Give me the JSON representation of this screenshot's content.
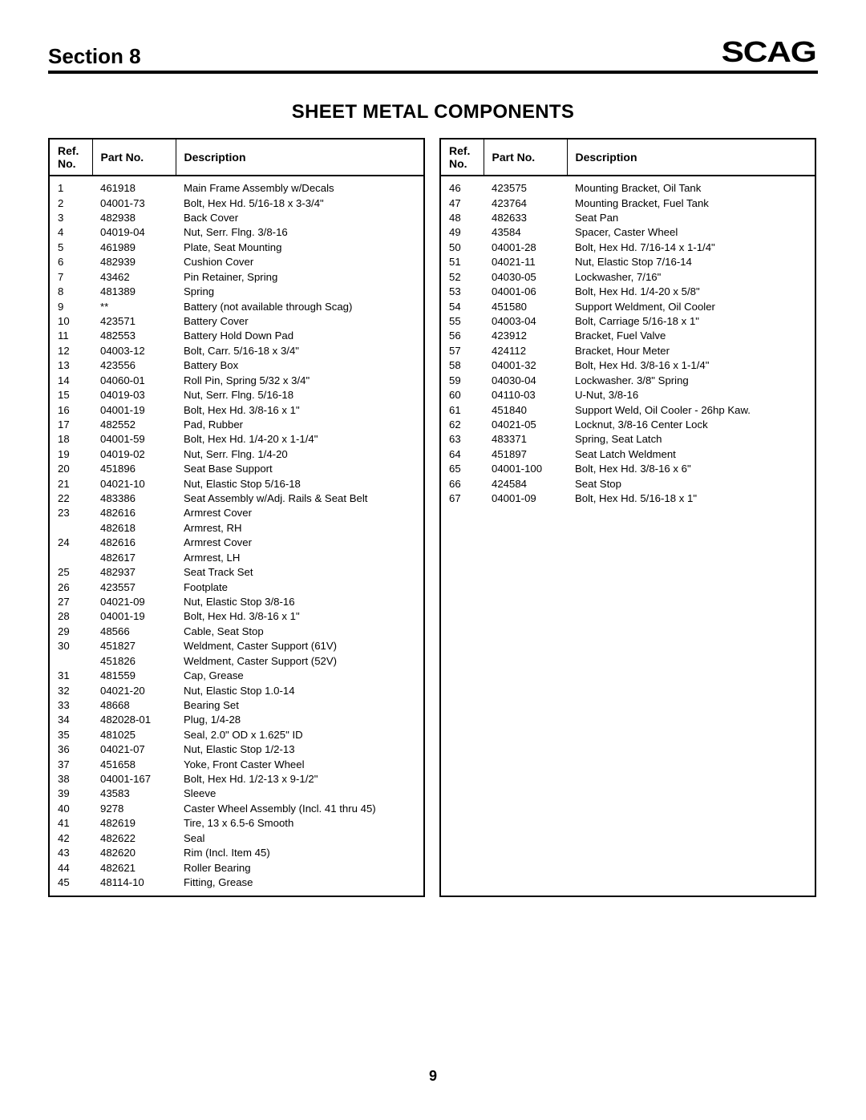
{
  "header": {
    "section_label": "Section 8",
    "brand": "SCAG"
  },
  "title": "SHEET METAL COMPONENTS",
  "columns": {
    "ref_line1": "Ref.",
    "ref_line2": "No.",
    "part_no": "Part No.",
    "description": "Description"
  },
  "page_number": "9",
  "left_rows": [
    {
      "ref": "1",
      "pn": "461918",
      "desc": "Main Frame Assembly w/Decals"
    },
    {
      "ref": "2",
      "pn": "04001-73",
      "desc": "Bolt, Hex Hd. 5/16-18 x 3-3/4\""
    },
    {
      "ref": "3",
      "pn": "482938",
      "desc": "Back Cover"
    },
    {
      "ref": "4",
      "pn": "04019-04",
      "desc": "Nut, Serr. Flng. 3/8-16"
    },
    {
      "ref": "5",
      "pn": "461989",
      "desc": "Plate, Seat Mounting"
    },
    {
      "ref": "6",
      "pn": "482939",
      "desc": "Cushion Cover"
    },
    {
      "ref": "7",
      "pn": "43462",
      "desc": "Pin Retainer, Spring"
    },
    {
      "ref": "8",
      "pn": "481389",
      "desc": "Spring"
    },
    {
      "ref": "9",
      "pn": "**",
      "desc": "Battery (not available through Scag)"
    },
    {
      "ref": "10",
      "pn": "423571",
      "desc": "Battery Cover"
    },
    {
      "ref": "11",
      "pn": "482553",
      "desc": "Battery Hold Down Pad"
    },
    {
      "ref": "12",
      "pn": "04003-12",
      "desc": "Bolt, Carr. 5/16-18 x 3/4\""
    },
    {
      "ref": "13",
      "pn": "423556",
      "desc": "Battery Box"
    },
    {
      "ref": "14",
      "pn": "04060-01",
      "desc": "Roll Pin, Spring 5/32 x 3/4\""
    },
    {
      "ref": "15",
      "pn": "04019-03",
      "desc": "Nut, Serr. Flng. 5/16-18"
    },
    {
      "ref": "16",
      "pn": "04001-19",
      "desc": "Bolt, Hex Hd. 3/8-16 x 1\""
    },
    {
      "ref": "17",
      "pn": "482552",
      "desc": "Pad, Rubber"
    },
    {
      "ref": "18",
      "pn": "04001-59",
      "desc": "Bolt, Hex Hd. 1/4-20 x 1-1/4\""
    },
    {
      "ref": "19",
      "pn": "04019-02",
      "desc": "Nut, Serr. Flng. 1/4-20"
    },
    {
      "ref": "20",
      "pn": "451896",
      "desc": "Seat Base Support"
    },
    {
      "ref": "21",
      "pn": "04021-10",
      "desc": "Nut, Elastic Stop 5/16-18"
    },
    {
      "ref": "22",
      "pn": "483386",
      "desc": "Seat Assembly w/Adj. Rails & Seat Belt"
    },
    {
      "ref": "23",
      "pn": "482616",
      "desc": "Armrest Cover"
    },
    {
      "ref": "",
      "pn": "482618",
      "desc": "Armrest, RH"
    },
    {
      "ref": "24",
      "pn": "482616",
      "desc": "Armrest Cover"
    },
    {
      "ref": "",
      "pn": "482617",
      "desc": "Armrest, LH"
    },
    {
      "ref": "25",
      "pn": "482937",
      "desc": "Seat Track Set"
    },
    {
      "ref": "26",
      "pn": "423557",
      "desc": "Footplate"
    },
    {
      "ref": "27",
      "pn": "04021-09",
      "desc": "Nut, Elastic Stop 3/8-16"
    },
    {
      "ref": "28",
      "pn": "04001-19",
      "desc": "Bolt, Hex Hd. 3/8-16 x 1\""
    },
    {
      "ref": "29",
      "pn": "48566",
      "desc": "Cable, Seat Stop"
    },
    {
      "ref": "30",
      "pn": "451827",
      "desc": "Weldment, Caster Support (61V)"
    },
    {
      "ref": "",
      "pn": "451826",
      "desc": "Weldment, Caster Support (52V)"
    },
    {
      "ref": "31",
      "pn": "481559",
      "desc": "Cap, Grease"
    },
    {
      "ref": "32",
      "pn": "04021-20",
      "desc": "Nut, Elastic Stop 1.0-14"
    },
    {
      "ref": "33",
      "pn": "48668",
      "desc": "Bearing Set"
    },
    {
      "ref": "34",
      "pn": "482028-01",
      "desc": "Plug, 1/4-28"
    },
    {
      "ref": "35",
      "pn": "481025",
      "desc": "Seal, 2.0\" OD x 1.625\" ID"
    },
    {
      "ref": "36",
      "pn": "04021-07",
      "desc": "Nut, Elastic Stop 1/2-13"
    },
    {
      "ref": "37",
      "pn": "451658",
      "desc": "Yoke, Front Caster Wheel"
    },
    {
      "ref": "38",
      "pn": "04001-167",
      "desc": "Bolt, Hex Hd. 1/2-13 x 9-1/2\""
    },
    {
      "ref": "39",
      "pn": "43583",
      "desc": "Sleeve"
    },
    {
      "ref": "40",
      "pn": "9278",
      "desc": "Caster Wheel Assembly (Incl. 41 thru 45)"
    },
    {
      "ref": "41",
      "pn": "482619",
      "desc": "Tire, 13 x 6.5-6 Smooth"
    },
    {
      "ref": "42",
      "pn": "482622",
      "desc": "Seal"
    },
    {
      "ref": "43",
      "pn": "482620",
      "desc": "Rim (Incl. Item 45)"
    },
    {
      "ref": "44",
      "pn": "482621",
      "desc": "Roller Bearing"
    },
    {
      "ref": "45",
      "pn": "48114-10",
      "desc": "Fitting, Grease"
    }
  ],
  "right_rows": [
    {
      "ref": "46",
      "pn": "423575",
      "desc": "Mounting Bracket, Oil Tank"
    },
    {
      "ref": "47",
      "pn": "423764",
      "desc": "Mounting Bracket, Fuel Tank"
    },
    {
      "ref": "48",
      "pn": "482633",
      "desc": "Seat Pan"
    },
    {
      "ref": "49",
      "pn": "43584",
      "desc": "Spacer, Caster Wheel"
    },
    {
      "ref": "50",
      "pn": "04001-28",
      "desc": "Bolt, Hex Hd. 7/16-14 x 1-1/4\""
    },
    {
      "ref": "51",
      "pn": "04021-11",
      "desc": "Nut, Elastic Stop 7/16-14"
    },
    {
      "ref": "52",
      "pn": "04030-05",
      "desc": "Lockwasher, 7/16\""
    },
    {
      "ref": "53",
      "pn": "04001-06",
      "desc": "Bolt, Hex Hd. 1/4-20 x 5/8\""
    },
    {
      "ref": "54",
      "pn": "451580",
      "desc": "Support Weldment, Oil Cooler"
    },
    {
      "ref": "55",
      "pn": "04003-04",
      "desc": "Bolt, Carriage 5/16-18 x 1\""
    },
    {
      "ref": "56",
      "pn": "423912",
      "desc": "Bracket, Fuel Valve"
    },
    {
      "ref": "57",
      "pn": "424112",
      "desc": "Bracket, Hour Meter"
    },
    {
      "ref": "58",
      "pn": "04001-32",
      "desc": "Bolt, Hex Hd. 3/8-16 x 1-1/4\""
    },
    {
      "ref": "59",
      "pn": "04030-04",
      "desc": "Lockwasher. 3/8\" Spring"
    },
    {
      "ref": "60",
      "pn": "04110-03",
      "desc": "U-Nut, 3/8-16"
    },
    {
      "ref": "61",
      "pn": "451840",
      "desc": "Support Weld, Oil Cooler - 26hp Kaw."
    },
    {
      "ref": "62",
      "pn": "04021-05",
      "desc": "Locknut, 3/8-16 Center Lock"
    },
    {
      "ref": "63",
      "pn": "483371",
      "desc": "Spring, Seat Latch"
    },
    {
      "ref": "64",
      "pn": "451897",
      "desc": "Seat Latch Weldment"
    },
    {
      "ref": "65",
      "pn": "04001-100",
      "desc": "Bolt, Hex Hd. 3/8-16 x 6\""
    },
    {
      "ref": "66",
      "pn": "424584",
      "desc": "Seat Stop"
    },
    {
      "ref": "67",
      "pn": "04001-09",
      "desc": "Bolt, Hex Hd. 5/16-18 x 1\""
    }
  ]
}
